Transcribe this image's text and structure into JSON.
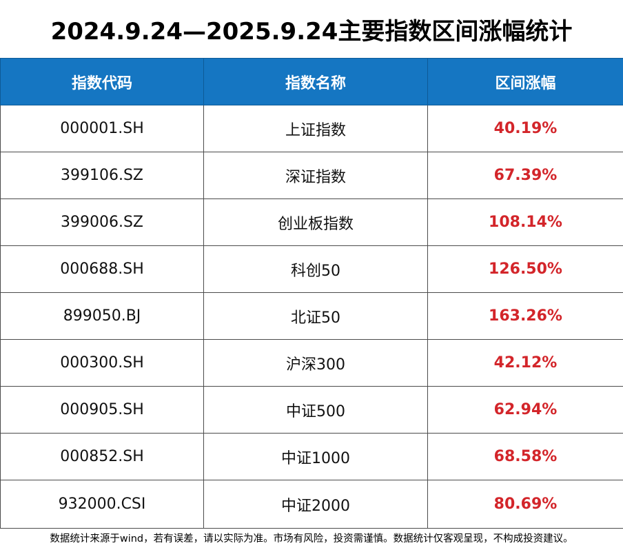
{
  "title": "2024.9.24—2025.9.24主要指数区间涨幅统计",
  "table": {
    "headers": [
      "指数代码",
      "指数名称",
      "区间涨幅"
    ],
    "rows": [
      {
        "code": "000001.SH",
        "name": "上证指数",
        "change": "40.19%"
      },
      {
        "code": "399106.SZ",
        "name": "深证指数",
        "change": "67.39%"
      },
      {
        "code": "399006.SZ",
        "name": "创业板指数",
        "change": "108.14%"
      },
      {
        "code": "000688.SH",
        "name": "科创50",
        "change": "126.50%"
      },
      {
        "code": "899050.BJ",
        "name": "北证50",
        "change": "163.26%"
      },
      {
        "code": "000300.SH",
        "name": "沪深300",
        "change": "42.12%"
      },
      {
        "code": "000905.SH",
        "name": "中证500",
        "change": "62.94%"
      },
      {
        "code": "000852.SH",
        "name": "中证1000",
        "change": "68.58%"
      },
      {
        "code": "932000.CSI",
        "name": "中证2000",
        "change": "80.69%"
      }
    ]
  },
  "footer": "数据统计来源于wind，若有误差，请以实际为准。市场有风险，投资需谨慎。数据统计仅客观呈现，不构成投资建议。",
  "colors": {
    "header_bg": "#1576c2",
    "header_text": "#ffffff",
    "change_text": "#d3252a",
    "grid": "#4a4a4a"
  }
}
